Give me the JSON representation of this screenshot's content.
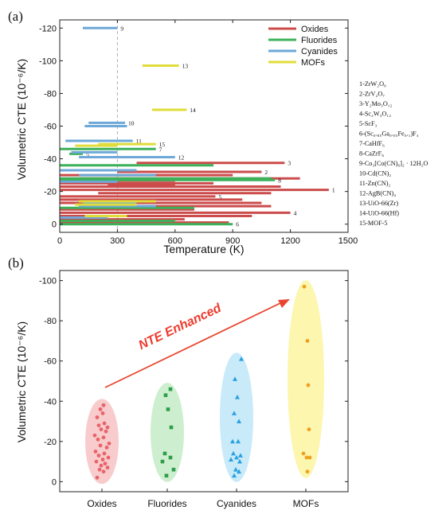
{
  "chart_data": [
    {
      "panel_label": "(a)",
      "type": "range-bar",
      "xlabel": "Temperature (K)",
      "ylabel": "Volumetric CTE (10⁻⁶/K)",
      "xlim": [
        0,
        1500
      ],
      "ylim": [
        5,
        -125
      ],
      "xticks": [
        "0",
        "300",
        "600",
        "900",
        "1200",
        "1500"
      ],
      "yticks": [
        "0",
        "-20",
        "-40",
        "-60",
        "-80",
        "-100",
        "-120"
      ],
      "reference_line_x": 300,
      "legend": {
        "position": "top-right",
        "items": [
          {
            "name": "Oxides",
            "color": "#cc4b4b"
          },
          {
            "name": "Fluorides",
            "color": "#3cb15a"
          },
          {
            "name": "Cyanides",
            "color": "#6ea8d8"
          },
          {
            "name": "MOFs",
            "color": "#e0dd3a"
          }
        ]
      },
      "series": [
        {
          "name": "Oxides",
          "bars": [
            {
              "x0": 0,
              "x1": 1400,
              "y": -21,
              "label": "1"
            },
            {
              "x0": 300,
              "x1": 1050,
              "y": -32,
              "label": "2"
            },
            {
              "x0": 400,
              "x1": 1170,
              "y": -37.5,
              "label": "3"
            },
            {
              "x0": 0,
              "x1": 1200,
              "y": -7,
              "label": "4"
            },
            {
              "x0": 0,
              "x1": 810,
              "y": -17,
              "label": "5"
            },
            {
              "x0": 100,
              "x1": 1250,
              "y": -28
            },
            {
              "x0": 0,
              "x1": 900,
              "y": -30
            },
            {
              "x0": 0,
              "x1": 800,
              "y": -25
            },
            {
              "x0": 0,
              "x1": 1150,
              "y": -23
            },
            {
              "x0": 200,
              "x1": 1100,
              "y": -19
            },
            {
              "x0": 0,
              "x1": 950,
              "y": -15
            },
            {
              "x0": 0,
              "x1": 1050,
              "y": -13
            },
            {
              "x0": 100,
              "x1": 1100,
              "y": -11
            },
            {
              "x0": 0,
              "x1": 700,
              "y": -9
            },
            {
              "x0": 0,
              "x1": 1000,
              "y": -5
            },
            {
              "x0": 0,
              "x1": 650,
              "y": -3
            },
            {
              "x0": 0,
              "x1": 880,
              "y": -1
            },
            {
              "x0": 0,
              "x1": 600,
              "y": -26.5
            },
            {
              "x0": 250,
              "x1": 600,
              "y": -24
            }
          ]
        },
        {
          "name": "Fluorides",
          "bars": [
            {
              "x0": 0,
              "x1": 900,
              "y": 0,
              "label": "6"
            },
            {
              "x0": 0,
              "x1": 500,
              "y": -46,
              "label": "7"
            },
            {
              "x0": 0,
              "x1": 1120,
              "y": -27,
              "label": "8"
            },
            {
              "x0": 50,
              "x1": 120,
              "y": -43,
              "label": "5"
            },
            {
              "x0": 0,
              "x1": 800,
              "y": -36
            },
            {
              "x0": 0,
              "x1": 1100,
              "y": -28
            },
            {
              "x0": 0,
              "x1": 700,
              "y": -10
            },
            {
              "x0": 0,
              "x1": 600,
              "y": -2
            }
          ]
        },
        {
          "name": "Cyanides",
          "bars": [
            {
              "x0": 120,
              "x1": 300,
              "y": -120,
              "label": "9"
            },
            {
              "x0": 150,
              "x1": 340,
              "y": -62,
              "label": "10"
            },
            {
              "x0": 30,
              "x1": 380,
              "y": -51,
              "label": "11"
            },
            {
              "x0": 100,
              "x1": 600,
              "y": -41,
              "label": "12"
            },
            {
              "x0": 130,
              "x1": 350,
              "y": -60
            },
            {
              "x0": 60,
              "x1": 300,
              "y": -44
            },
            {
              "x0": 0,
              "x1": 400,
              "y": -33
            },
            {
              "x0": 100,
              "x1": 500,
              "y": -30
            },
            {
              "x0": 0,
              "x1": 300,
              "y": -26
            },
            {
              "x0": 120,
              "x1": 400,
              "y": -13
            },
            {
              "x0": 100,
              "x1": 500,
              "y": -11
            },
            {
              "x0": 0,
              "x1": 250,
              "y": -4
            }
          ]
        },
        {
          "name": "MOFs",
          "bars": [
            {
              "x0": 430,
              "x1": 620,
              "y": -97,
              "label": "13"
            },
            {
              "x0": 480,
              "x1": 660,
              "y": -70,
              "label": "14"
            },
            {
              "x0": 200,
              "x1": 500,
              "y": -49,
              "label": "15"
            },
            {
              "x0": 80,
              "x1": 300,
              "y": -48
            },
            {
              "x0": 100,
              "x1": 500,
              "y": -14
            },
            {
              "x0": 80,
              "x1": 400,
              "y": -12
            },
            {
              "x0": 130,
              "x1": 350,
              "y": -5
            }
          ]
        }
      ],
      "compound_list": [
        "1-ZrW₂O₈",
        "2-ZrV₂O₇",
        "3-Y₂Mo₃O₁₂",
        "4-Sc₂W₃O₁₂",
        "5-ScF₃",
        "6-(Sc₀.₈₅Ga₀.₀₅Fe₀.₁)F₃",
        "7-CaHfF₆",
        "8-CaZrF₆",
        "9-Co₃[Co(CN)₆]₂ · 12H₂O",
        "10-Cd(CN)₂",
        "11-Zn(CN)₂",
        "12-AgB(CN)₄",
        "13-UiO-66(Zr)",
        "14-UiO-66(Hf)",
        "15-MOF-5"
      ]
    },
    {
      "panel_label": "(b)",
      "type": "scatter",
      "ylabel": "Volumetric CTE (10⁻⁶/K)",
      "ylim": [
        5,
        -105
      ],
      "yticks": [
        "0",
        "-20",
        "-40",
        "-60",
        "-80",
        "-100"
      ],
      "categories": [
        "Oxides",
        "Fluorides",
        "Cyanides",
        "MOFs"
      ],
      "annotation": "NTE Enhanced",
      "series": [
        {
          "name": "Oxides",
          "color": "#e8636a",
          "fill": "#f7c3c3",
          "marker": "circle",
          "points": [
            {
              "dx": -6,
              "y": -2
            },
            {
              "dx": 2,
              "y": -5
            },
            {
              "dx": -3,
              "y": -6
            },
            {
              "dx": 7,
              "y": -7
            },
            {
              "dx": -1,
              "y": -8
            },
            {
              "dx": 4,
              "y": -9
            },
            {
              "dx": -7,
              "y": -10
            },
            {
              "dx": 1,
              "y": -11
            },
            {
              "dx": 8,
              "y": -12
            },
            {
              "dx": -4,
              "y": -13
            },
            {
              "dx": 3,
              "y": -14
            },
            {
              "dx": -8,
              "y": -15
            },
            {
              "dx": 6,
              "y": -17
            },
            {
              "dx": -2,
              "y": -18
            },
            {
              "dx": 9,
              "y": -19
            },
            {
              "dx": -5,
              "y": -21
            },
            {
              "dx": 2,
              "y": -22
            },
            {
              "dx": -9,
              "y": -23
            },
            {
              "dx": 5,
              "y": -25
            },
            {
              "dx": -1,
              "y": -26
            },
            {
              "dx": 7,
              "y": -27
            },
            {
              "dx": -4,
              "y": -28
            },
            {
              "dx": 3,
              "y": -29
            },
            {
              "dx": -6,
              "y": -32
            },
            {
              "dx": 1,
              "y": -34
            },
            {
              "dx": -2,
              "y": -36
            },
            {
              "dx": 2,
              "y": -38
            }
          ]
        },
        {
          "name": "Fluorides",
          "color": "#2e9e48",
          "fill": "#c4ecc8",
          "marker": "square",
          "points": [
            {
              "dx": 4,
              "y": -46
            },
            {
              "dx": -2,
              "y": -43
            },
            {
              "dx": 1,
              "y": -36
            },
            {
              "dx": 5,
              "y": -27
            },
            {
              "dx": -3,
              "y": -14
            },
            {
              "dx": 4,
              "y": -12
            },
            {
              "dx": -6,
              "y": -10
            },
            {
              "dx": 8,
              "y": -6
            },
            {
              "dx": -1,
              "y": -3
            }
          ]
        },
        {
          "name": "Cyanides",
          "color": "#2aa0e0",
          "fill": "#bfe6f8",
          "marker": "triangle",
          "points": [
            {
              "dx": 6,
              "y": -61
            },
            {
              "dx": -2,
              "y": -51
            },
            {
              "dx": 1,
              "y": -42
            },
            {
              "dx": -3,
              "y": -34
            },
            {
              "dx": 3,
              "y": -30
            },
            {
              "dx": -5,
              "y": -20
            },
            {
              "dx": 2,
              "y": -20
            },
            {
              "dx": -4,
              "y": -14
            },
            {
              "dx": 5,
              "y": -13
            },
            {
              "dx": 0,
              "y": -12
            },
            {
              "dx": -7,
              "y": -11
            },
            {
              "dx": 4,
              "y": -10
            },
            {
              "dx": -1,
              "y": -6
            },
            {
              "dx": 3,
              "y": -5
            },
            {
              "dx": -3,
              "y": -3
            }
          ]
        },
        {
          "name": "MOFs",
          "color": "#f0a020",
          "fill": "#fbf5a0",
          "marker": "circle",
          "points": [
            {
              "dx": -2,
              "y": -97
            },
            {
              "dx": 2,
              "y": -70
            },
            {
              "dx": 3,
              "y": -48
            },
            {
              "dx": 4,
              "y": -26
            },
            {
              "dx": -3,
              "y": -14
            },
            {
              "dx": 1,
              "y": -12
            },
            {
              "dx": 5,
              "y": -12
            },
            {
              "dx": 2,
              "y": -5
            }
          ]
        }
      ]
    }
  ]
}
